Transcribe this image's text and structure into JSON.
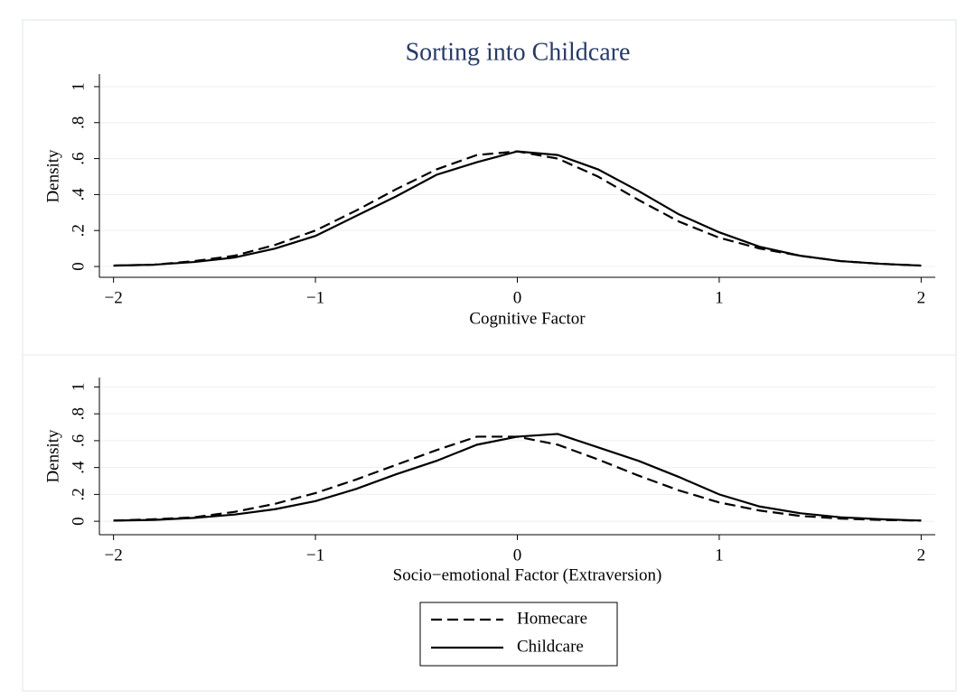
{
  "chart_data": [
    {
      "type": "line",
      "title": "Sorting into Childcare",
      "x_label": "Cognitive Factor",
      "y_label": "Density",
      "x": [
        -2,
        -1.8,
        -1.6,
        -1.4,
        -1.2,
        -1,
        -0.8,
        -0.6,
        -0.4,
        -0.2,
        0,
        0.2,
        0.4,
        0.6,
        0.8,
        1,
        1.2,
        1.4,
        1.6,
        1.8,
        2
      ],
      "series": [
        {
          "color": "#000000",
          "dash": "dashed",
          "values": [
            0.005,
            0.01,
            0.03,
            0.06,
            0.12,
            0.2,
            0.31,
            0.43,
            0.54,
            0.62,
            0.64,
            0.6,
            0.5,
            0.37,
            0.25,
            0.16,
            0.1,
            0.06,
            0.03,
            0.015,
            0.005
          ]
        },
        {
          "color": "#000000",
          "dash": "solid",
          "values": [
            0.005,
            0.01,
            0.025,
            0.05,
            0.1,
            0.17,
            0.28,
            0.39,
            0.51,
            0.58,
            0.64,
            0.62,
            0.54,
            0.42,
            0.29,
            0.19,
            0.11,
            0.06,
            0.03,
            0.015,
            0.005
          ]
        }
      ],
      "xlim": [
        -2.07,
        2.07
      ],
      "ylim": [
        -0.06,
        1.07
      ],
      "xticks": [
        {
          "value": -2,
          "label": "−2"
        },
        {
          "value": -1,
          "label": "−1"
        },
        0,
        1,
        2
      ],
      "yticks": [
        0,
        {
          "value": 0.2,
          "label": ".2"
        },
        {
          "value": 0.4,
          "label": ".4"
        },
        {
          "value": 0.6,
          "label": ".6"
        },
        {
          "value": 0.8,
          "label": ".8"
        },
        1
      ],
      "grid": true
    },
    {
      "type": "line",
      "x_label": "Socio−emotional Factor (Extraversion)",
      "y_label": "Density",
      "x": [
        -2,
        -1.8,
        -1.6,
        -1.4,
        -1.2,
        -1,
        -0.8,
        -0.6,
        -0.4,
        -0.2,
        0,
        0.2,
        0.4,
        0.6,
        0.8,
        1,
        1.2,
        1.4,
        1.6,
        1.8,
        2
      ],
      "series": [
        {
          "name": "Homecare",
          "color": "#000000",
          "dash": "dashed",
          "values": [
            0.005,
            0.015,
            0.03,
            0.07,
            0.13,
            0.21,
            0.31,
            0.42,
            0.53,
            0.63,
            0.63,
            0.57,
            0.46,
            0.34,
            0.23,
            0.14,
            0.08,
            0.04,
            0.02,
            0.01,
            0.005
          ]
        },
        {
          "name": "Childcare",
          "color": "#000000",
          "dash": "solid",
          "values": [
            0.005,
            0.01,
            0.025,
            0.05,
            0.09,
            0.15,
            0.24,
            0.35,
            0.45,
            0.57,
            0.63,
            0.65,
            0.55,
            0.45,
            0.33,
            0.2,
            0.11,
            0.06,
            0.03,
            0.015,
            0.005
          ]
        }
      ],
      "xlim": [
        -2.07,
        2.07
      ],
      "ylim": [
        -0.1,
        1.07
      ],
      "xticks": [
        {
          "value": -2,
          "label": "−2"
        },
        {
          "value": -1,
          "label": "−1"
        },
        0,
        1,
        2
      ],
      "yticks": [
        0,
        {
          "value": 0.2,
          "label": ".2"
        },
        {
          "value": 0.4,
          "label": ".4"
        },
        {
          "value": 0.6,
          "label": ".6"
        },
        {
          "value": 0.8,
          "label": ".8"
        },
        1
      ],
      "grid": true,
      "legend": "bottom"
    }
  ]
}
